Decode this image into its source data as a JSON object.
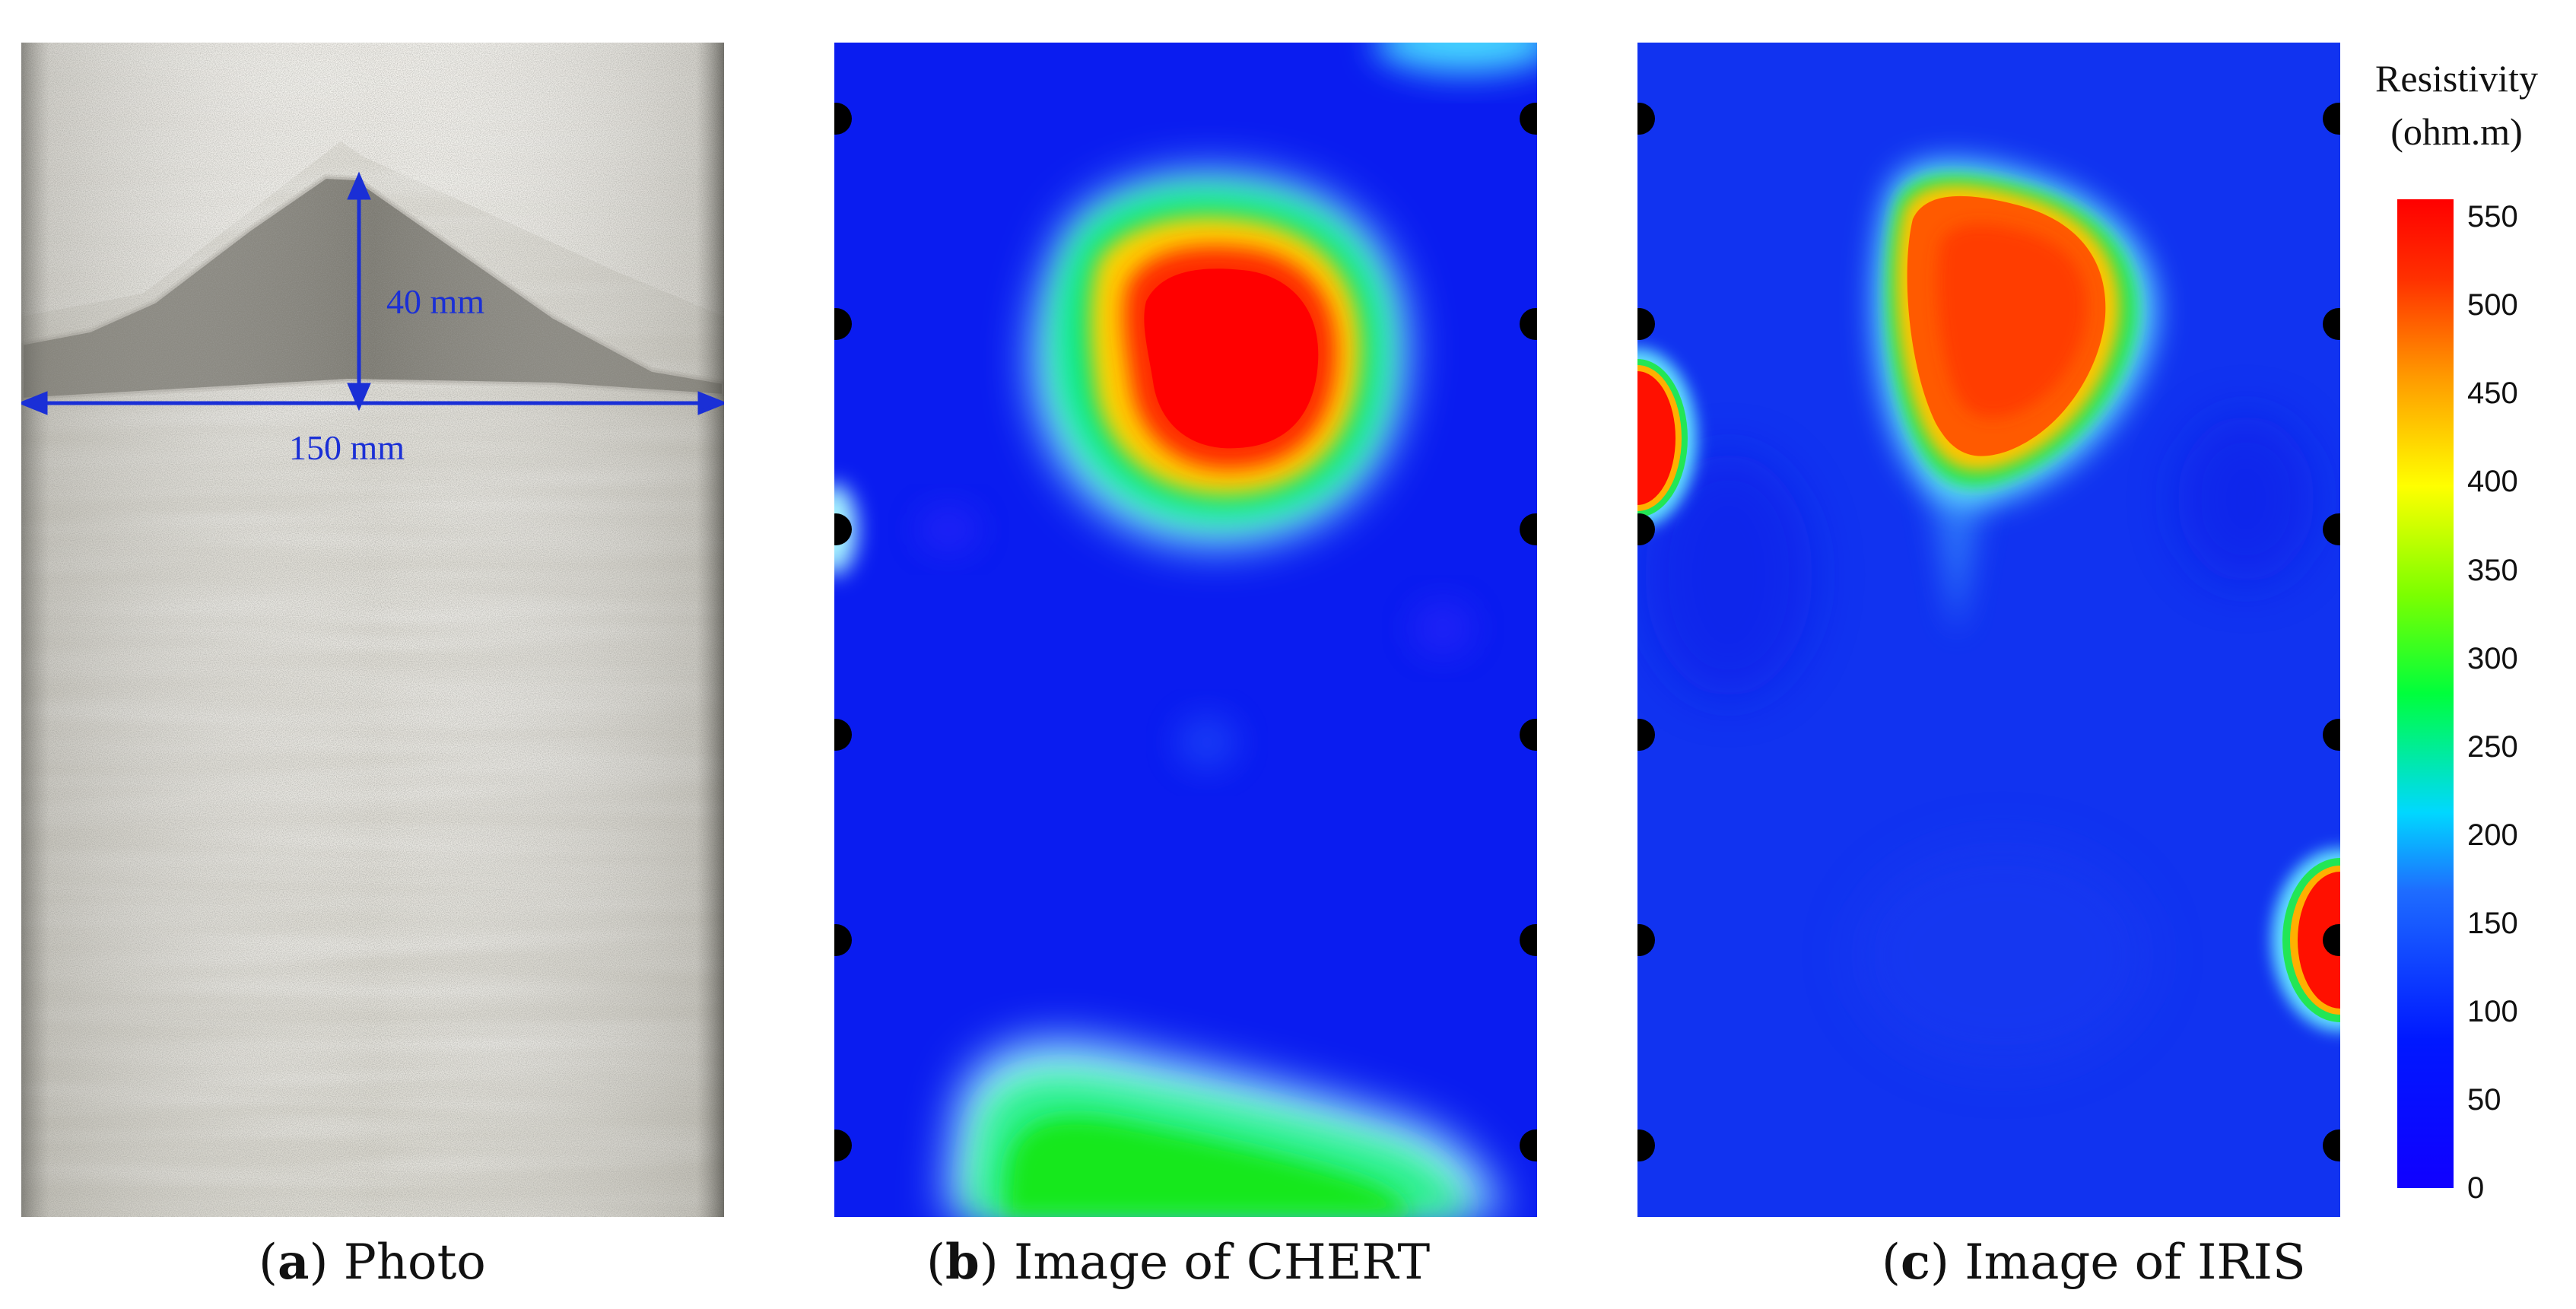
{
  "panels": [
    {
      "letter": "a",
      "caption": "Photo"
    },
    {
      "letter": "b",
      "caption": "Image of CHERT"
    },
    {
      "letter": "c",
      "caption": "Image of IRIS"
    }
  ],
  "photo": {
    "height_label": "40 mm",
    "width_label": "150 mm",
    "annotation_color": "#1a2fd6"
  },
  "colorbar": {
    "title_line1": "Resistivity",
    "title_line2": "(ohm.m)",
    "ticks": [
      "550",
      "500",
      "450",
      "400",
      "350",
      "300",
      "250",
      "200",
      "150",
      "100",
      "50",
      "0"
    ],
    "min": 0,
    "max": 560,
    "colors": [
      "#0000ff",
      "#1e5cff",
      "#00d8ff",
      "#00ff3c",
      "#aaff00",
      "#ffff00",
      "#ff8c00",
      "#ff0000"
    ]
  },
  "electrodes_per_side": 6
}
